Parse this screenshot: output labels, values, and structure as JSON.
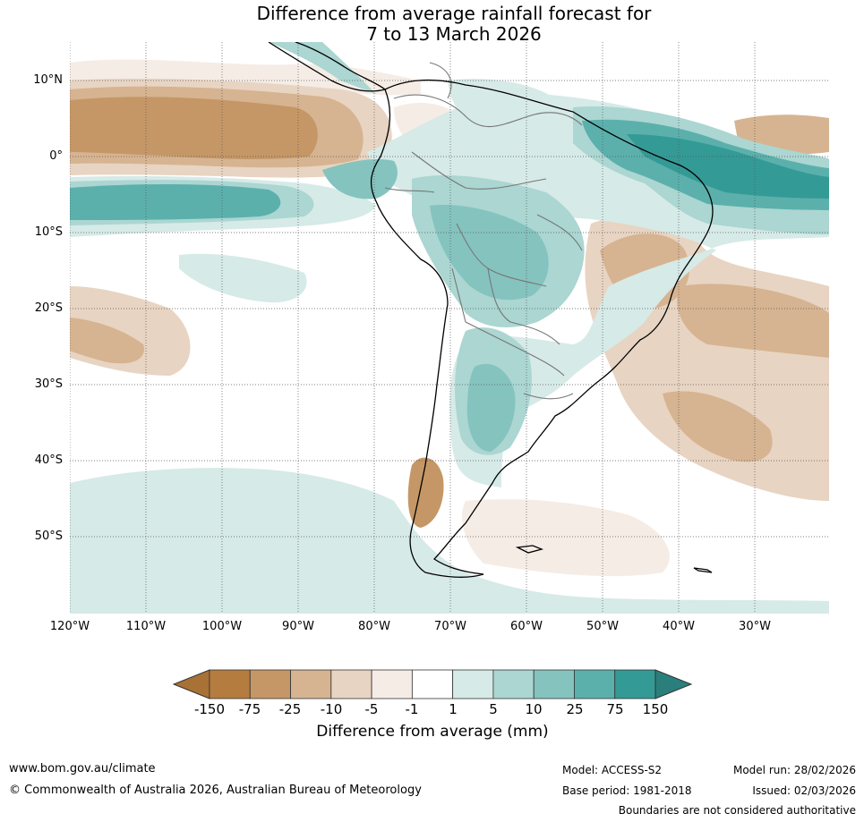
{
  "title": {
    "line1": "Difference from average rainfall forecast for",
    "line2": "7 to 13 March 2026"
  },
  "map": {
    "lat_labels": [
      "10°N",
      "0°",
      "10°S",
      "20°S",
      "30°S",
      "40°S",
      "50°S"
    ],
    "lon_labels": [
      "120°W",
      "110°W",
      "100°W",
      "90°W",
      "80°W",
      "70°W",
      "60°W",
      "50°W",
      "40°W",
      "30°W"
    ],
    "extent": {
      "lon_min": -120,
      "lon_max": -20,
      "lat_min": -60,
      "lat_max": 15
    }
  },
  "colorbar": {
    "ticks": [
      "-150",
      "-75",
      "-25",
      "-10",
      "-5",
      "-1",
      "1",
      "5",
      "10",
      "25",
      "75",
      "150"
    ],
    "colors": [
      "#a87135",
      "#b57c3f",
      "#c59766",
      "#d6b491",
      "#e8d4c2",
      "#f5ece6",
      "#ffffff",
      "#d6eae7",
      "#abd6d2",
      "#85c3bf",
      "#5bb0ac",
      "#349a96",
      "#2a7f7c"
    ],
    "title": "Difference from average (mm)"
  },
  "footer": {
    "website": "www.bom.gov.au/climate",
    "copyright": "© Commonwealth of Australia 2026, Australian Bureau of Meteorology",
    "model": "Model: ACCESS-S2",
    "base_period": "Base period: 1981-2018",
    "model_run": "Model run: 28/02/2026",
    "issued": "Issued: 02/03/2026",
    "disclaimer": "Boundaries are not considered authoritative"
  }
}
